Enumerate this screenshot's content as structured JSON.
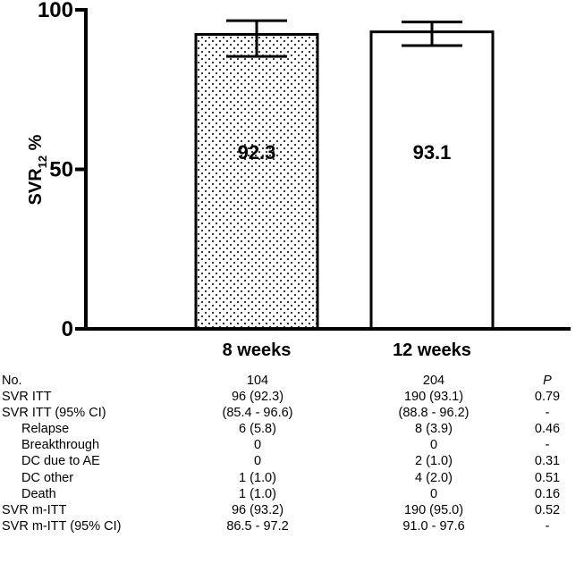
{
  "chart_data": {
    "type": "bar",
    "categories": [
      "8 weeks",
      "12 weeks"
    ],
    "values": [
      92.3,
      93.1
    ],
    "bar_labels": [
      "92.3",
      "93.1"
    ],
    "error_bars": [
      [
        85.4,
        96.6
      ],
      [
        88.8,
        96.2
      ]
    ],
    "bar_fills": [
      "dotted",
      "white"
    ],
    "ylabel_main": "SVR",
    "ylabel_sub": "12",
    "ylabel_unit": " %",
    "ylim": [
      0,
      100
    ],
    "yticks": [
      0,
      50,
      100
    ],
    "ytick_labels": [
      "0",
      "50",
      "100"
    ],
    "grid": false,
    "colors": {
      "axis": "#000000",
      "bar_edge": "#000000",
      "bar_fill": "#ffffff"
    }
  },
  "table": {
    "header": {
      "label": "No.",
      "w8": "104",
      "w12": "204",
      "p": "P"
    },
    "rows": [
      {
        "label": "SVR ITT",
        "w8": "96 (92.3)",
        "w12": "190 (93.1)",
        "p": "0.79",
        "indent": false
      },
      {
        "label": "SVR ITT (95% CI)",
        "w8": "(85.4 - 96.6)",
        "w12": "(88.8 - 96.2)",
        "p": "-",
        "indent": false
      },
      {
        "label": "Relapse",
        "w8": "6 (5.8)",
        "w12": "8 (3.9)",
        "p": "0.46",
        "indent": true
      },
      {
        "label": "Breakthrough",
        "w8": "0",
        "w12": "0",
        "p": "-",
        "indent": true
      },
      {
        "label": "DC due to AE",
        "w8": "0",
        "w12": "2 (1.0)",
        "p": "0.31",
        "indent": true
      },
      {
        "label": "DC other",
        "w8": "1 (1.0)",
        "w12": "4 (2.0)",
        "p": "0.51",
        "indent": true
      },
      {
        "label": "Death",
        "w8": "1 (1.0)",
        "w12": "0",
        "p": "0.16",
        "indent": true
      },
      {
        "label": "SVR m-ITT",
        "w8": "96 (93.2)",
        "w12": "190 (95.0)",
        "p": "0.52",
        "indent": false
      },
      {
        "label": "SVR m-ITT (95% CI)",
        "w8": "86.5 - 97.2",
        "w12": "91.0 - 97.6",
        "p": "-",
        "indent": false
      }
    ]
  }
}
